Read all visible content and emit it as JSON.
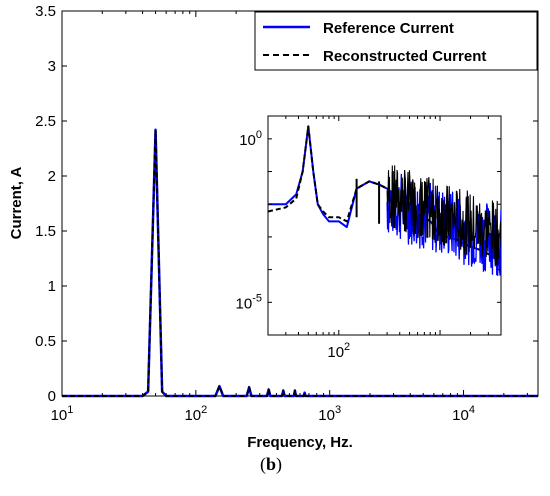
{
  "figure": {
    "caption": {
      "open": "(",
      "letter": "b",
      "close": ")"
    }
  },
  "chart_data": [
    {
      "type": "line",
      "xlabel": "Frequency, Hz.",
      "ylabel": "Current, A",
      "xscale": "log",
      "xlim": [
        10,
        36000
      ],
      "ylim": [
        0,
        3.5
      ],
      "grid": false,
      "legend": "top-right",
      "x_ticks": [
        {
          "base": "10",
          "exp": "1",
          "value": 10
        },
        {
          "base": "10",
          "exp": "2",
          "value": 100
        },
        {
          "base": "10",
          "exp": "3",
          "value": 1000
        },
        {
          "base": "10",
          "exp": "4",
          "value": 10000
        }
      ],
      "y_ticks": [
        {
          "label": "0",
          "value": 0
        },
        {
          "label": "0.5",
          "value": 0.5
        },
        {
          "label": "1",
          "value": 1
        },
        {
          "label": "1.5",
          "value": 1.5
        },
        {
          "label": "2",
          "value": 2
        },
        {
          "label": "2.5",
          "value": 2.5
        },
        {
          "label": "3",
          "value": 3
        },
        {
          "label": "3.5",
          "value": 3.5
        }
      ],
      "series": [
        {
          "name": "Reference Current",
          "color": "#0000ff",
          "style": "solid",
          "x": [
            10,
            40,
            44,
            50,
            56,
            60,
            100,
            140,
            150,
            160,
            240,
            250,
            260,
            340,
            350,
            360,
            440,
            450,
            460,
            540,
            550,
            560,
            640,
            650,
            660,
            1000,
            36000
          ],
          "y": [
            0,
            0,
            0.04,
            2.42,
            0.04,
            0,
            0,
            0,
            0.09,
            0,
            0,
            0.08,
            0,
            0,
            0.06,
            0,
            0,
            0.05,
            0,
            0,
            0.05,
            0,
            0,
            0.03,
            0,
            0,
            0
          ]
        },
        {
          "name": "Reconstructed Current",
          "color": "#000000",
          "style": "dashed",
          "x": [
            10,
            40,
            44,
            50,
            56,
            60,
            100,
            140,
            150,
            160,
            240,
            250,
            260,
            340,
            350,
            360,
            440,
            450,
            460,
            540,
            550,
            560,
            640,
            650,
            660,
            1000,
            36000
          ],
          "y": [
            0,
            0,
            0.04,
            2.42,
            0.04,
            0,
            0,
            0,
            0.09,
            0,
            0,
            0.08,
            0,
            0,
            0.06,
            0,
            0,
            0.05,
            0,
            0,
            0.05,
            0,
            0,
            0.03,
            0,
            0,
            0
          ]
        }
      ]
    },
    {
      "type": "line",
      "xscale": "log",
      "yscale": "log",
      "xlim": [
        20,
        4000
      ],
      "ylim": [
        1e-06,
        5
      ],
      "grid": false,
      "x_ticks": [
        {
          "base": "10",
          "exp": "2",
          "value": 100
        }
      ],
      "y_ticks": [
        {
          "base": "10",
          "exp": "0",
          "value": 1
        },
        {
          "base": "10",
          "exp": "-5",
          "value": 1e-05
        }
      ],
      "series": [
        {
          "name": "Reference Current",
          "color": "#0000ff",
          "style": "solid",
          "x": [
            20,
            30,
            38,
            44,
            50,
            56,
            62,
            70,
            80,
            100,
            120,
            150,
            200,
            250,
            300,
            350,
            400,
            450,
            500,
            600,
            700,
            800,
            900,
            1000,
            1200,
            1500,
            2000,
            2500,
            3000,
            4000
          ],
          "y": [
            0.01,
            0.01,
            0.02,
            0.1,
            2.4,
            0.1,
            0.01,
            0.005,
            0.003,
            0.003,
            0.002,
            0.03,
            0.05,
            0.04,
            0.03,
            0.02,
            0.01,
            0.02,
            0.01,
            0.005,
            0.004,
            0.003,
            0.002,
            0.001,
            0.001,
            0.0008,
            0.0005,
            0.0004,
            0.0003,
            0.0002
          ]
        },
        {
          "name": "Reconstructed Current",
          "color": "#000000",
          "style": "dashed",
          "x": [
            20,
            30,
            38,
            44,
            50,
            56,
            62,
            70,
            80,
            100,
            120,
            150,
            200,
            250,
            300,
            350,
            400,
            450,
            500,
            600,
            700,
            800,
            900,
            1000,
            1200,
            1500,
            2000,
            2500,
            3000,
            4000
          ],
          "y": [
            0.006,
            0.008,
            0.015,
            0.1,
            2.4,
            0.1,
            0.01,
            0.006,
            0.004,
            0.004,
            0.003,
            0.03,
            0.05,
            0.04,
            0.03,
            0.02,
            0.01,
            0.02,
            0.01,
            0.005,
            0.004,
            0.003,
            0.002,
            0.001,
            0.001,
            0.0008,
            0.0005,
            0.0004,
            0.0003,
            0.0002
          ]
        }
      ],
      "harmonic_peaks": {
        "x": [
          150,
          250,
          350,
          450,
          550,
          650,
          750,
          850,
          950,
          1050,
          1150
        ],
        "y": [
          0.06,
          0.05,
          0.045,
          0.04,
          0.03,
          0.03,
          0.025,
          0.02,
          0.015,
          0.012,
          0.01
        ]
      }
    }
  ]
}
